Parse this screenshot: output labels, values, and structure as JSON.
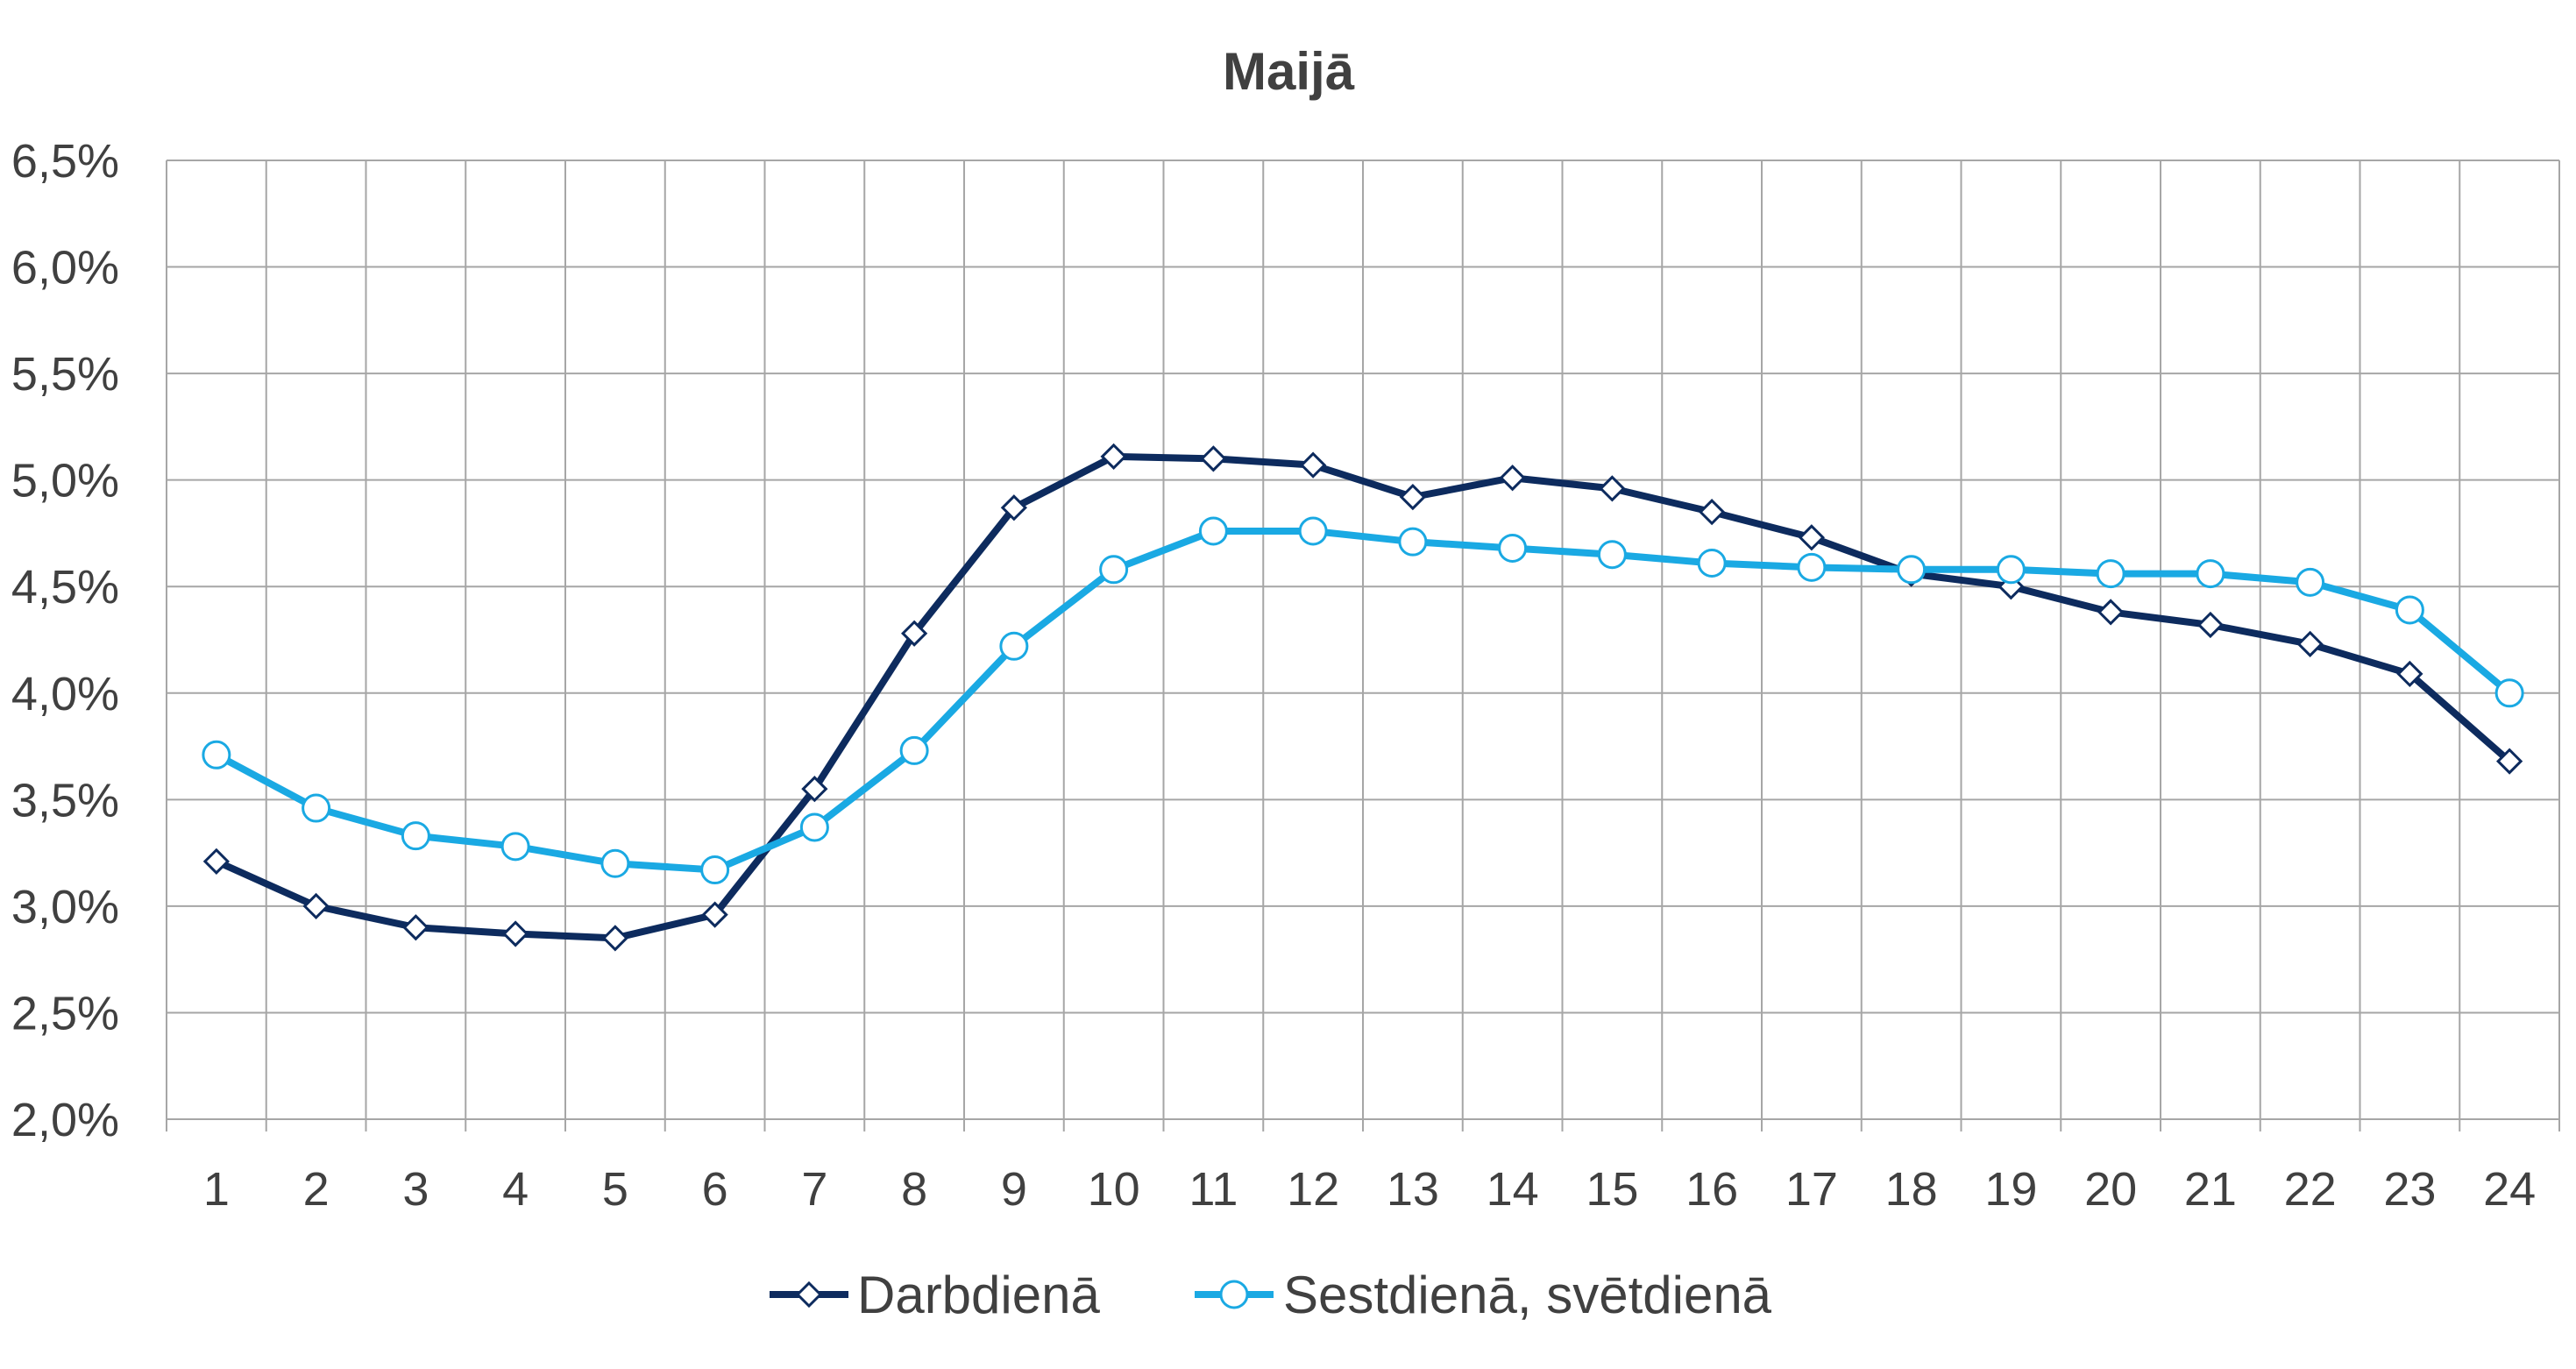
{
  "chart_data": {
    "type": "line",
    "title": "Maijā",
    "xlabel": "",
    "ylabel": "",
    "categories": [
      "1",
      "2",
      "3",
      "4",
      "5",
      "6",
      "7",
      "8",
      "9",
      "10",
      "11",
      "12",
      "13",
      "14",
      "15",
      "16",
      "17",
      "18",
      "19",
      "20",
      "21",
      "22",
      "23",
      "24"
    ],
    "y_ticks": [
      "2,0%",
      "2,5%",
      "3,0%",
      "3,5%",
      "4,0%",
      "4,5%",
      "5,0%",
      "5,5%",
      "6,0%",
      "6,5%"
    ],
    "ylim": [
      2.0,
      6.5
    ],
    "y_unit": "%",
    "grid": true,
    "legend_position": "bottom",
    "series": [
      {
        "name": "Darbdienā",
        "color": "#0d2b5e",
        "marker": "diamond",
        "values": [
          3.21,
          3.0,
          2.9,
          2.87,
          2.85,
          2.96,
          3.55,
          4.28,
          4.87,
          5.11,
          5.1,
          5.07,
          4.92,
          5.01,
          4.96,
          4.85,
          4.73,
          4.56,
          4.5,
          4.38,
          4.32,
          4.23,
          4.09,
          3.68
        ]
      },
      {
        "name": "Sestdienā, svētdienā",
        "color": "#1aa9e3",
        "marker": "circle",
        "values": [
          3.71,
          3.46,
          3.33,
          3.28,
          3.2,
          3.17,
          3.37,
          3.73,
          4.22,
          4.58,
          4.76,
          4.76,
          4.71,
          4.68,
          4.65,
          4.61,
          4.59,
          4.58,
          4.58,
          4.56,
          4.56,
          4.52,
          4.39,
          4.0
        ]
      }
    ]
  }
}
